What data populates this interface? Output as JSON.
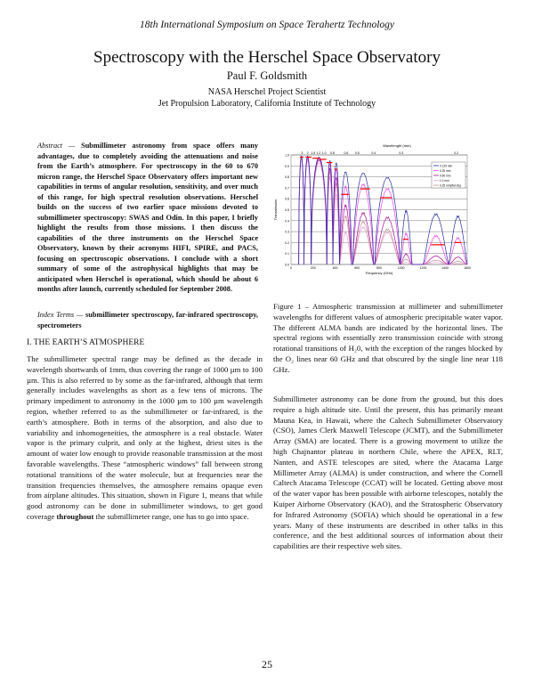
{
  "header": "18th International Symposium on Space Terahertz Technology",
  "title": "Spectroscopy with the Herschel Space Observatory",
  "author": "Paul F. Goldsmith",
  "affiliation": [
    "NASA Herschel Project Scientist",
    "Jet Propulsion Laboratory, California Institute of Technology"
  ],
  "abstract": {
    "label": "Abstract",
    "text": "Submillimeter astronomy from space offers many advantages, due to completely avoiding the attenuations and noise from the Earth’s atmosphere. For spectroscopy in the 60 to 670 micron range, the Herschel Space Observatory offers important new capabilities in terms of angular resolution, sensitivity, and over much of this range, for high spectral resolution observations. Herschel builds on the success of two earlier space missions devoted to submillimeter spectroscopy: SWAS and Odin. In this paper, I briefly highlight the results from those missions. I then discuss the capabilities of the three instruments on the Herschel Space Observatory, known by their acronyms HIFI, SPIRE, and PACS, focusing on spectroscopic observations. I conclude with a short summary of some of the astrophysical highlights that may be anticipated when Herschel is operational, which should be about 6 months after launch, currently scheduled for September 2008."
  },
  "index_terms": {
    "label": "Index Terms",
    "text": "submillimeter spectroscopy, far-infrared spectroscopy, spectrometers"
  },
  "section1": {
    "heading": "I. THE EARTH’S ATMOSPHERE",
    "p1a": "The submillimeter spectral range may be defined as the decade in wavelength shortwards of 1mm, thus covering the range of 1000 µm to 100 µm. This is also referred to by some as the far-infrared, although that term generally includes wavelengths as short as a few tens of microns. The primary impediment to astronomy in the 1000 µm to 100 µm wavelength region, whether referred to as the submillimeter or far-infrared, is the earth’s atmosphere. Both in terms of the absorption, and also due to variability and inhomogeneities, the atmosphere is a real obstacle. Water vapor is the primary culprit, and only at the highest, driest sites is the amount of water low enough to provide reasonable transmission at the most favorable wavelengths. These “atmospheric windows” fall between strong rotational transitions of the water molecule, but at frequencies near the transition frequencies themselves, the atmosphere remains opaque even from airplane altitudes. This situation, shown in Figure 1, means that while good astronomy can be done in submillimeter windows, to get good coverage ",
    "p1b": "throughout",
    "p1c": " the submillimeter range, one has to go into space."
  },
  "caption": "Figure 1 – Atmospheric transmission at millimeter and submillimeter wavelengths for different values of atmospheric precipitable water vapor. The different ALMA bands are indicated by the horizontal lines. The spectral regions with essentially zero transmission coincide with strong rotational transitions of H₂0, with the exception of the ranges blocked by the O₂ lines near 60 GHz and that obscured by the single line near 118 GHz.",
  "right_paragraph": "Submillimeter astronomy can be done from the ground, but this does require a high altitude site. Until the present, this has primarily meant Mauna Kea, in Hawaii, where the Caltech Submillimeter Observatory (CSO), James Clerk Maxwell Telescope (JCMT), and the Submillimeter Array (SMA) are located. There is a growing movement to utilize the high Chajnantor plateau in northern Chile, where the APEX, RLT, Nanten, and ASTE telescopes are sited, where the Atacama Large Millimeter Array (ALMA) is under construction, and where the Cornell Caltech Atacama Telescope (CCAT) will be located. Getting above most of the water vapor has been possible with airborne telescopes, notably the Kuiper Airborne Observatory (KAO), and the Stratospheric Observatory for Infrared Astronomy (SOFIA) which should be operational in a few years. Many of these instruments are described in other talks in this conference, and the best additional sources of information about their capabilities are their respective web sites.",
  "page_number": "25",
  "chart_data": {
    "type": "line",
    "xlabel": "Frequency (GHz)",
    "ylabel": "Transmission",
    "x2label": "Wavelength (mm)",
    "xlim": [
      0,
      1600
    ],
    "ylim": [
      0,
      1
    ],
    "xticks": [
      0,
      200,
      400,
      600,
      800,
      1000,
      1200,
      1400,
      1600
    ],
    "yticks": [
      0,
      0.1,
      0.2,
      0.3,
      0.4,
      0.5,
      0.6,
      0.7,
      0.8,
      0.9,
      1.0
    ],
    "x2ticks": [
      "3",
      "2",
      "1.5",
      "1.2",
      "1.0",
      "0.8",
      "0.6",
      "0.5",
      "0.4",
      "0.3",
      "0.2"
    ],
    "grid": "horizontal",
    "legend_position": "top-right",
    "windows_ghz": [
      [
        70,
        118
      ],
      [
        118,
        183
      ],
      [
        183,
        325
      ],
      [
        325,
        380
      ],
      [
        380,
        440
      ],
      [
        440,
        550
      ],
      [
        560,
        750
      ],
      [
        760,
        990
      ],
      [
        990,
        1100
      ],
      [
        1200,
        1430
      ],
      [
        1430,
        1600
      ]
    ],
    "series": [
      {
        "name": "0.125 mm",
        "color": "#2b2fa0",
        "peaks": [
          0.99,
          0.99,
          0.98,
          0.95,
          0.93,
          0.85,
          0.84,
          0.8,
          0.5,
          0.47,
          0.45
        ]
      },
      {
        "name": "0.25 mm",
        "color": "#ee44ee",
        "peaks": [
          0.99,
          0.98,
          0.97,
          0.92,
          0.87,
          0.72,
          0.74,
          0.7,
          0.29,
          0.27,
          0.25
        ]
      },
      {
        "name": "0.50 mm",
        "color": "#aa1199",
        "peaks": [
          0.98,
          0.97,
          0.96,
          0.88,
          0.8,
          0.55,
          0.48,
          0.44,
          0.1,
          0.08,
          0.07
        ]
      },
      {
        "name": "1.0 mm",
        "color": "#e8a8d8",
        "peaks": [
          0.97,
          0.95,
          0.93,
          0.8,
          0.65,
          0.3,
          0.35,
          0.3,
          0.02,
          0.02,
          0.01
        ]
      },
      {
        "name": "0.25 mm(flat dry)",
        "color": "#c09090",
        "peaks": [
          0.98,
          0.97,
          0.95,
          0.85,
          0.75,
          0.45,
          0.4,
          0.33,
          0.05,
          0.04,
          0.03
        ]
      }
    ],
    "alma_bands": [
      {
        "x": [
          81,
          113
        ],
        "y": 0.98
      },
      {
        "x": [
          132,
          186
        ],
        "y": 0.98
      },
      {
        "x": [
          194,
          259
        ],
        "y": 0.97
      },
      {
        "x": [
          261,
          321
        ],
        "y": 0.96
      },
      {
        "x": [
          323,
          375
        ],
        "y": 0.93
      },
      {
        "x": [
          393,
          420
        ],
        "y": 0.87
      },
      {
        "x": [
          455,
          528
        ],
        "y": 0.64
      },
      {
        "x": [
          630,
          717
        ],
        "y": 0.69
      },
      {
        "x": [
          811,
          914
        ],
        "y": 0.61
      },
      {
        "x": [
          1016,
          1067
        ],
        "y": 0.23
      },
      {
        "x": [
          1270,
          1393
        ],
        "y": 0.18
      },
      {
        "x": [
          1485,
          1547
        ],
        "y": 0.2
      }
    ],
    "band_color": "#ff0000"
  }
}
